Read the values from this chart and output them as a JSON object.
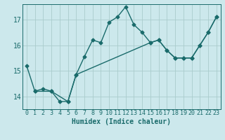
{
  "xlabel": "Humidex (Indice chaleur)",
  "background_color": "#cce8ec",
  "grid_color": "#aacccc",
  "line_color": "#1a6b6b",
  "xlim": [
    -0.5,
    23.5
  ],
  "ylim": [
    13.5,
    17.6
  ],
  "yticks": [
    14,
    15,
    16,
    17
  ],
  "xticks": [
    0,
    1,
    2,
    3,
    4,
    5,
    6,
    7,
    8,
    9,
    10,
    11,
    12,
    13,
    14,
    15,
    16,
    17,
    18,
    19,
    20,
    21,
    22,
    23
  ],
  "series1_x": [
    0,
    1,
    2,
    3,
    4,
    5,
    6,
    7,
    8,
    9,
    10,
    11,
    12,
    13,
    14,
    15,
    16,
    17,
    18,
    19,
    20,
    21,
    22,
    23
  ],
  "series1_y": [
    15.2,
    14.2,
    14.3,
    14.2,
    13.8,
    13.8,
    14.85,
    15.55,
    16.2,
    16.1,
    16.9,
    17.1,
    17.5,
    16.8,
    16.5,
    16.1,
    16.2,
    15.8,
    15.5,
    15.5,
    15.5,
    16.0,
    16.5,
    17.1
  ],
  "series2_x": [
    1,
    3,
    5,
    6,
    15,
    16,
    17,
    18,
    19,
    20,
    21,
    22,
    23
  ],
  "series2_y": [
    14.2,
    14.2,
    13.8,
    14.85,
    16.1,
    16.2,
    15.8,
    15.5,
    15.5,
    15.5,
    16.0,
    16.5,
    17.1
  ],
  "font_size_label": 7,
  "font_size_tick": 6,
  "marker": "D",
  "marker_size": 2.5,
  "line_width": 1.0
}
